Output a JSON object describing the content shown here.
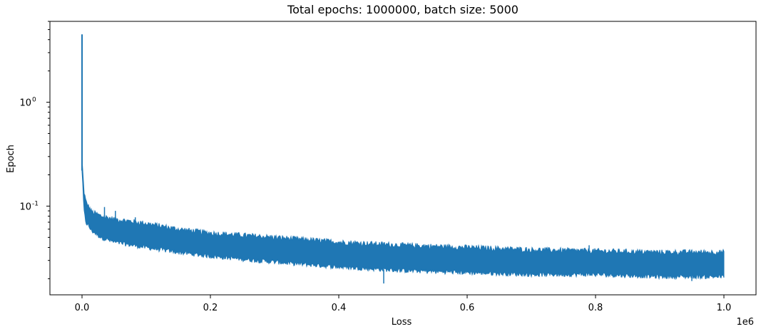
{
  "chart_data": {
    "type": "line",
    "title": "Total epochs: 1000000, batch size: 5000",
    "xlabel": "Loss",
    "ylabel": "Epoch",
    "x_offset_label": "1e6",
    "xlim": [
      -50000,
      1050000
    ],
    "ylim": [
      0.014,
      6
    ],
    "yscale": "log",
    "grid": false,
    "x_ticks": [
      {
        "value": 0,
        "label": "0.0"
      },
      {
        "value": 200000,
        "label": "0.2"
      },
      {
        "value": 400000,
        "label": "0.4"
      },
      {
        "value": 600000,
        "label": "0.6"
      },
      {
        "value": 800000,
        "label": "0.8"
      },
      {
        "value": 1000000,
        "label": "1.0"
      }
    ],
    "y_ticks": [
      {
        "value": 1,
        "label": "10^0"
      },
      {
        "value": 0.1,
        "label": "10^-1"
      }
    ],
    "series": [
      {
        "color": "#1f77b4",
        "x_max": 1000000,
        "spike": {
          "x": 0,
          "y": 4.5
        },
        "upper_envelope": [
          [
            0,
            0.28
          ],
          [
            3000,
            0.14
          ],
          [
            6000,
            0.11
          ],
          [
            15000,
            0.088
          ],
          [
            30000,
            0.08
          ],
          [
            50000,
            0.075
          ],
          [
            100000,
            0.068
          ],
          [
            150000,
            0.06
          ],
          [
            200000,
            0.055
          ],
          [
            300000,
            0.05
          ],
          [
            400000,
            0.045
          ],
          [
            500000,
            0.042
          ],
          [
            600000,
            0.04
          ],
          [
            700000,
            0.038
          ],
          [
            800000,
            0.037
          ],
          [
            900000,
            0.036
          ],
          [
            1000000,
            0.036
          ]
        ],
        "lower_envelope": [
          [
            0,
            0.22
          ],
          [
            3000,
            0.09
          ],
          [
            6000,
            0.07
          ],
          [
            15000,
            0.058
          ],
          [
            30000,
            0.05
          ],
          [
            50000,
            0.045
          ],
          [
            100000,
            0.04
          ],
          [
            150000,
            0.036
          ],
          [
            200000,
            0.033
          ],
          [
            300000,
            0.029
          ],
          [
            400000,
            0.026
          ],
          [
            500000,
            0.024
          ],
          [
            600000,
            0.023
          ],
          [
            700000,
            0.022
          ],
          [
            800000,
            0.022
          ],
          [
            900000,
            0.021
          ],
          [
            1000000,
            0.021
          ]
        ],
        "outliers": [
          {
            "x": 35000,
            "y": 0.098
          },
          {
            "x": 52000,
            "y": 0.09
          },
          {
            "x": 83000,
            "y": 0.078
          },
          {
            "x": 470000,
            "y": 0.018
          },
          {
            "x": 657000,
            "y": 0.039
          },
          {
            "x": 790000,
            "y": 0.042
          },
          {
            "x": 950000,
            "y": 0.019
          }
        ]
      }
    ]
  }
}
